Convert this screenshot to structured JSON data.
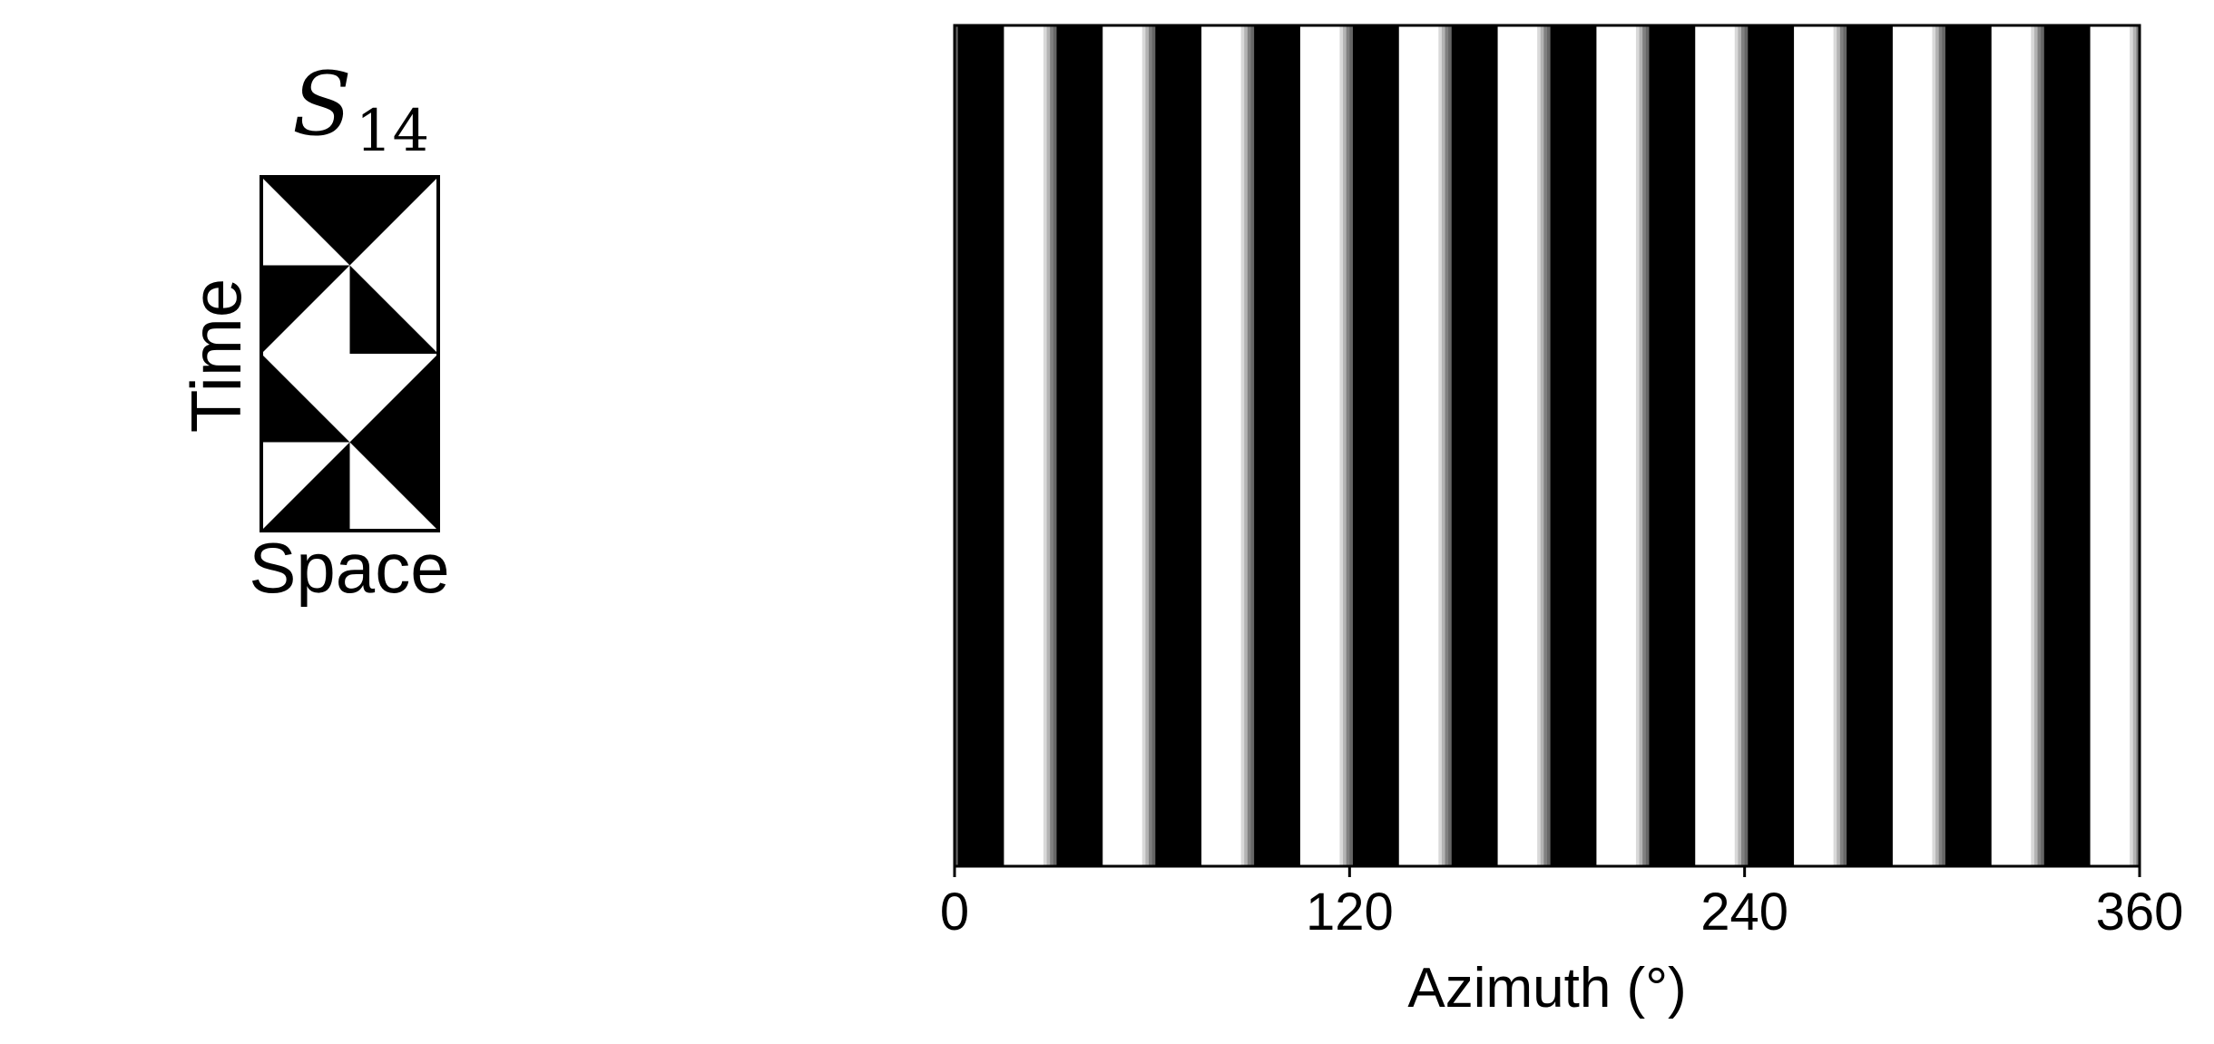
{
  "icon": {
    "title_symbol": "S",
    "title_subscript": "14",
    "xlabel": "Space",
    "ylabel": "Time"
  },
  "chart_data": {
    "type": "heatmap",
    "title": "",
    "xlabel": "Azimuth (°)",
    "ylabel": "",
    "xlim": [
      0,
      360
    ],
    "xticks": [
      0,
      120,
      240,
      360
    ],
    "xtick_labels": [
      "0",
      "120",
      "240",
      "360"
    ],
    "grid": false,
    "pattern": "vertical stripes, constant over the vertical axis",
    "stripe_period_deg": 30,
    "stripe_phase_deg": 0,
    "stripe_profile": [
      {
        "start": 0,
        "end": 1,
        "gray": 0.4
      },
      {
        "start": 1,
        "end": 2,
        "gray": 0.0
      },
      {
        "start": 2,
        "end": 15,
        "gray": 0.0
      },
      {
        "start": 15,
        "end": 27,
        "gray": 1.0
      },
      {
        "start": 27,
        "end": 28,
        "gray": 0.85
      },
      {
        "start": 28,
        "end": 29,
        "gray": 0.7
      },
      {
        "start": 29,
        "end": 30,
        "gray": 0.5
      }
    ],
    "colors": {
      "dark": "#000000",
      "light": "#ffffff"
    }
  }
}
